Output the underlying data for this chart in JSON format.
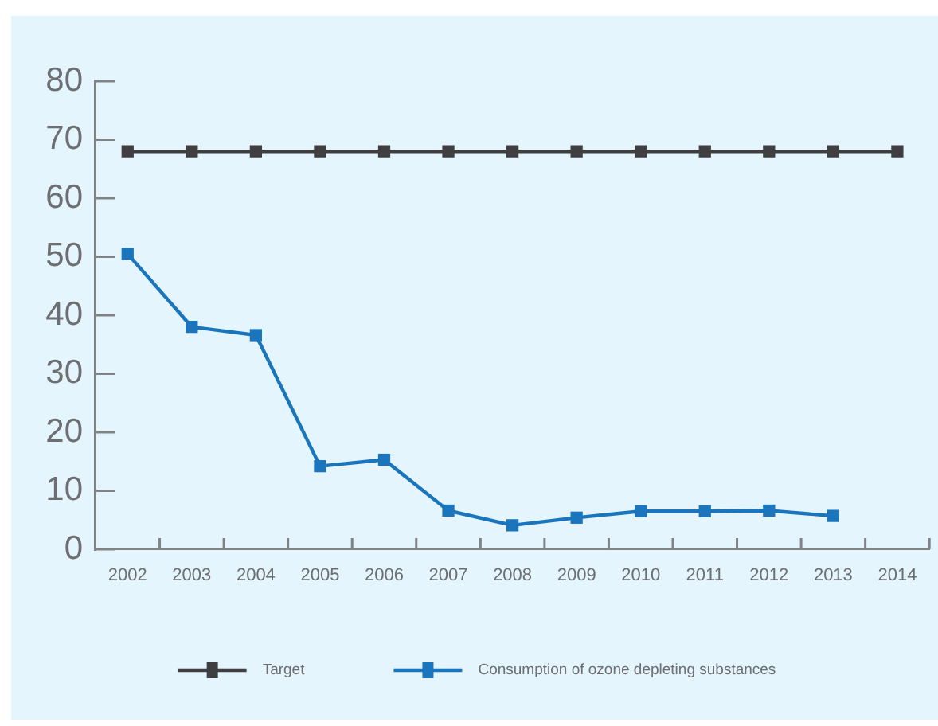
{
  "chart_data": {
    "type": "line",
    "categories": [
      "2002",
      "2003",
      "2004",
      "2005",
      "2006",
      "2007",
      "2008",
      "2009",
      "2010",
      "2011",
      "2012",
      "2013",
      "2014"
    ],
    "series": [
      {
        "name": "Target",
        "color": "#3f3f41",
        "values": [
          68,
          68,
          68,
          68,
          68,
          68,
          68,
          68,
          68,
          68,
          68,
          68,
          68
        ]
      },
      {
        "name": "Consumption of ozone depleting substances",
        "color": "#1b75bc",
        "values": [
          50.5,
          38,
          36.6,
          14.2,
          15.3,
          6.6,
          4.1,
          5.4,
          6.5,
          6.5,
          6.6,
          5.7,
          null
        ]
      }
    ],
    "ylim": [
      0,
      80
    ],
    "yticks": [
      0,
      10,
      20,
      30,
      40,
      50,
      60,
      70,
      80
    ],
    "grid": false,
    "legend": "bottom",
    "marker": "square",
    "line_style": "solid"
  }
}
